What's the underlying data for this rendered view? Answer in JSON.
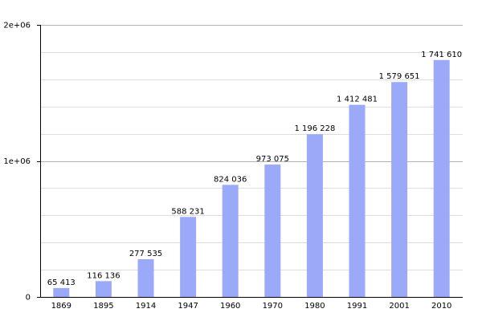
{
  "chart_data": {
    "type": "bar",
    "categories": [
      "1869",
      "1895",
      "1914",
      "1947",
      "1960",
      "1970",
      "1980",
      "1991",
      "2001",
      "2010"
    ],
    "values": [
      65413,
      116136,
      277535,
      588231,
      824036,
      973075,
      1196228,
      1412481,
      1579651,
      1741610
    ],
    "data_labels": [
      "65 413",
      "116 136",
      "277 535",
      "588 231",
      "824 036",
      "973 075",
      "1 196 228",
      "1 412 481",
      "1 579 651",
      "1 741 610"
    ],
    "ylim": [
      0,
      2000000
    ],
    "y_ticks": [
      {
        "value": 0,
        "label": "0"
      },
      {
        "value": 1000000,
        "label": "1e+06"
      },
      {
        "value": 2000000,
        "label": "2e+06"
      }
    ],
    "minor_grid_step": 200000,
    "grid": true,
    "legend": false,
    "colors": {
      "bar": "#9aaaf8",
      "major_grid": "#b3b3b3",
      "minor_grid": "#dddddd",
      "axis": "#000000"
    }
  }
}
